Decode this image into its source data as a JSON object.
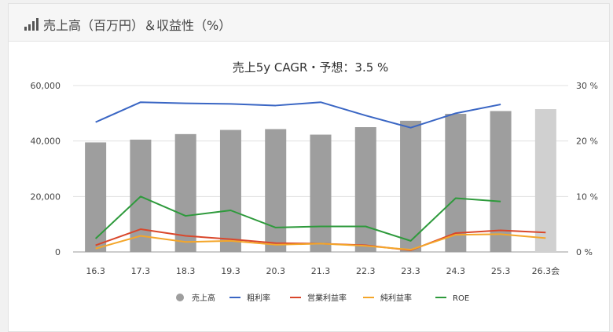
{
  "header": {
    "title": "売上高（百万円）＆収益性（%）",
    "icon": "signal-bars-icon"
  },
  "chart_data": {
    "type": "bar",
    "title": "売上5y CAGR・予想：3.5 %",
    "categories": [
      "16.3",
      "17.3",
      "18.3",
      "19.3",
      "20.3",
      "21.3",
      "22.3",
      "23.3",
      "24.3",
      "25.3",
      "26.3会"
    ],
    "left_axis": {
      "min": 0,
      "max": 60000,
      "ticks": [
        "0",
        "20,000",
        "40,000",
        "60,000"
      ]
    },
    "right_axis": {
      "min": 0,
      "max": 30,
      "ticks": [
        "0 %",
        "10 %",
        "20 %",
        "30 %"
      ]
    },
    "bars": {
      "name": "売上高",
      "values": [
        39500,
        40500,
        42500,
        44000,
        44300,
        42300,
        45000,
        47300,
        49800,
        50800,
        51500
      ],
      "color": "#9e9e9e",
      "forecast_color": "#d0d0d0"
    },
    "series": [
      {
        "name": "粗利率",
        "color": "#3a66c4",
        "values": [
          23.4,
          27.0,
          26.8,
          26.7,
          26.4,
          27.0,
          24.6,
          22.4,
          25.0,
          26.6,
          null
        ]
      },
      {
        "name": "営業利益率",
        "color": "#d9472b",
        "values": [
          1.2,
          4.1,
          2.9,
          2.3,
          1.6,
          1.5,
          1.2,
          0.3,
          3.4,
          3.9,
          3.5
        ]
      },
      {
        "name": "純利益率",
        "color": "#f4a62a",
        "values": [
          0.6,
          2.9,
          1.8,
          2.0,
          1.3,
          1.5,
          1.1,
          0.4,
          3.1,
          3.2,
          2.5
        ]
      },
      {
        "name": "ROE",
        "color": "#2e9a3c",
        "values": [
          2.4,
          10.0,
          6.5,
          7.5,
          4.4,
          4.6,
          4.6,
          2.0,
          9.7,
          9.1,
          null
        ]
      }
    ],
    "grid": true,
    "legend": "bottom"
  }
}
